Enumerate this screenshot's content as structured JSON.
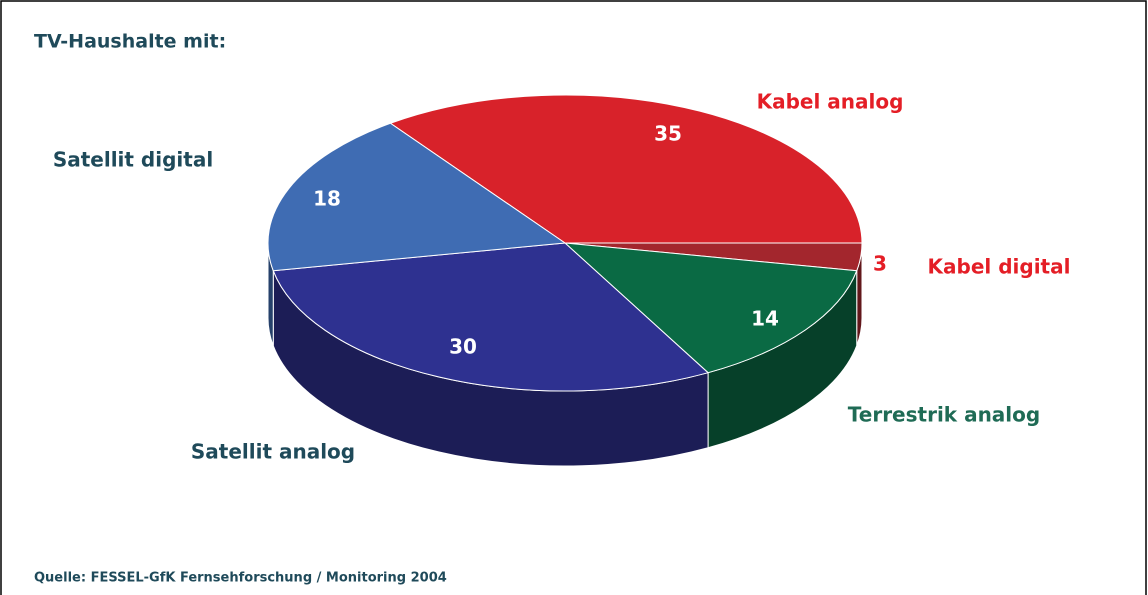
{
  "chart_data": {
    "type": "pie",
    "title": "TV-Haushalte mit:",
    "source": "Quelle: FESSEL-GfK Fernsehforschung / Monitoring 2004",
    "categories": [
      "Kabel analog",
      "Kabel digital",
      "Terrestrik analog",
      "Satellit analog",
      "Satellit digital"
    ],
    "values": [
      35,
      3,
      14,
      30,
      18
    ],
    "colors": [
      "#d8222a",
      "#a3262d",
      "#0a6a44",
      "#2e3190",
      "#3f6cb3"
    ],
    "label_colors": [
      "#e41e26",
      "#e41e26",
      "#1f6b55",
      "#1f4a5a",
      "#1f4a5a"
    ]
  }
}
